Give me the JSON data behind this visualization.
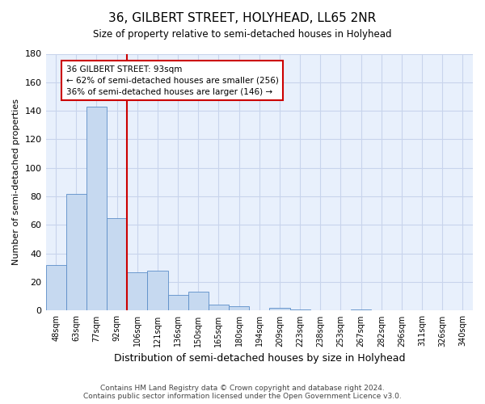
{
  "title": "36, GILBERT STREET, HOLYHEAD, LL65 2NR",
  "subtitle": "Size of property relative to semi-detached houses in Holyhead",
  "xlabel": "Distribution of semi-detached houses by size in Holyhead",
  "ylabel": "Number of semi-detached properties",
  "categories": [
    "48sqm",
    "63sqm",
    "77sqm",
    "92sqm",
    "106sqm",
    "121sqm",
    "136sqm",
    "150sqm",
    "165sqm",
    "180sqm",
    "194sqm",
    "209sqm",
    "223sqm",
    "238sqm",
    "253sqm",
    "267sqm",
    "282sqm",
    "296sqm",
    "311sqm",
    "326sqm",
    "340sqm"
  ],
  "values": [
    32,
    82,
    143,
    65,
    27,
    28,
    11,
    13,
    4,
    3,
    0,
    2,
    1,
    0,
    0,
    1,
    0,
    0,
    0,
    0,
    0
  ],
  "bar_color": "#c6d9f0",
  "bar_edge_color": "#5b8dc8",
  "property_line_color": "#cc0000",
  "annotation_text": "36 GILBERT STREET: 93sqm\n← 62% of semi-detached houses are smaller (256)\n36% of semi-detached houses are larger (146) →",
  "annotation_box_color": "#cc0000",
  "ylim": [
    0,
    180
  ],
  "yticks": [
    0,
    20,
    40,
    60,
    80,
    100,
    120,
    140,
    160,
    180
  ],
  "footer": "Contains HM Land Registry data © Crown copyright and database right 2024.\nContains public sector information licensed under the Open Government Licence v3.0.",
  "background_color": "#ffffff",
  "ax_background_color": "#e8f0fc",
  "grid_color": "#c8d4ec"
}
